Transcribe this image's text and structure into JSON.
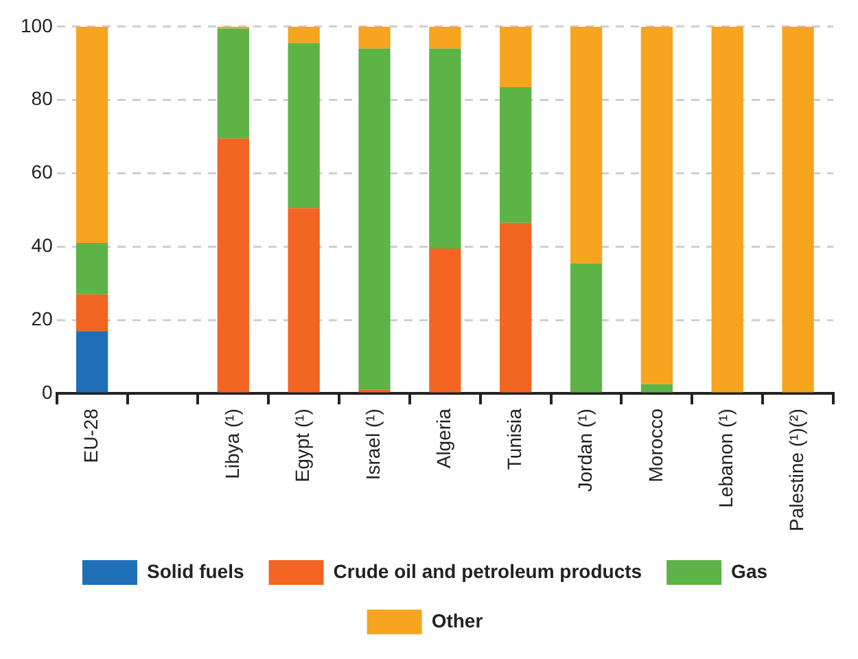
{
  "chart_data": {
    "type": "bar",
    "stacked": true,
    "categories": [
      "EU-28",
      null,
      "Libya (¹)",
      "Egypt (¹)",
      "Israel (¹)",
      "Algeria",
      "Tunisia",
      "Jordan (¹)",
      "Morocco",
      "Lebanon (¹)",
      "Palestine (¹)(²)"
    ],
    "series": [
      {
        "name": "Solid fuels",
        "color": "#1f6fb7",
        "values": [
          17,
          null,
          0,
          0,
          0,
          0,
          0,
          0,
          0,
          0,
          0
        ]
      },
      {
        "name": "Crude oil and petroleum products",
        "color": "#f26522",
        "values": [
          10,
          null,
          69.5,
          50.5,
          1,
          39.5,
          46.5,
          0,
          0,
          0,
          0
        ]
      },
      {
        "name": "Gas",
        "color": "#5db346",
        "values": [
          14,
          null,
          30,
          45,
          93,
          54.5,
          37,
          35.5,
          2.5,
          0,
          0
        ]
      },
      {
        "name": "Other",
        "color": "#f7a51e",
        "values": [
          59,
          null,
          0.5,
          4.5,
          6,
          6,
          16.5,
          64.5,
          97.5,
          100,
          100
        ]
      }
    ],
    "ylim": [
      0,
      100
    ],
    "yticks": [
      0,
      20,
      40,
      60,
      80,
      100
    ],
    "grid": "y",
    "legend": "bottom"
  }
}
